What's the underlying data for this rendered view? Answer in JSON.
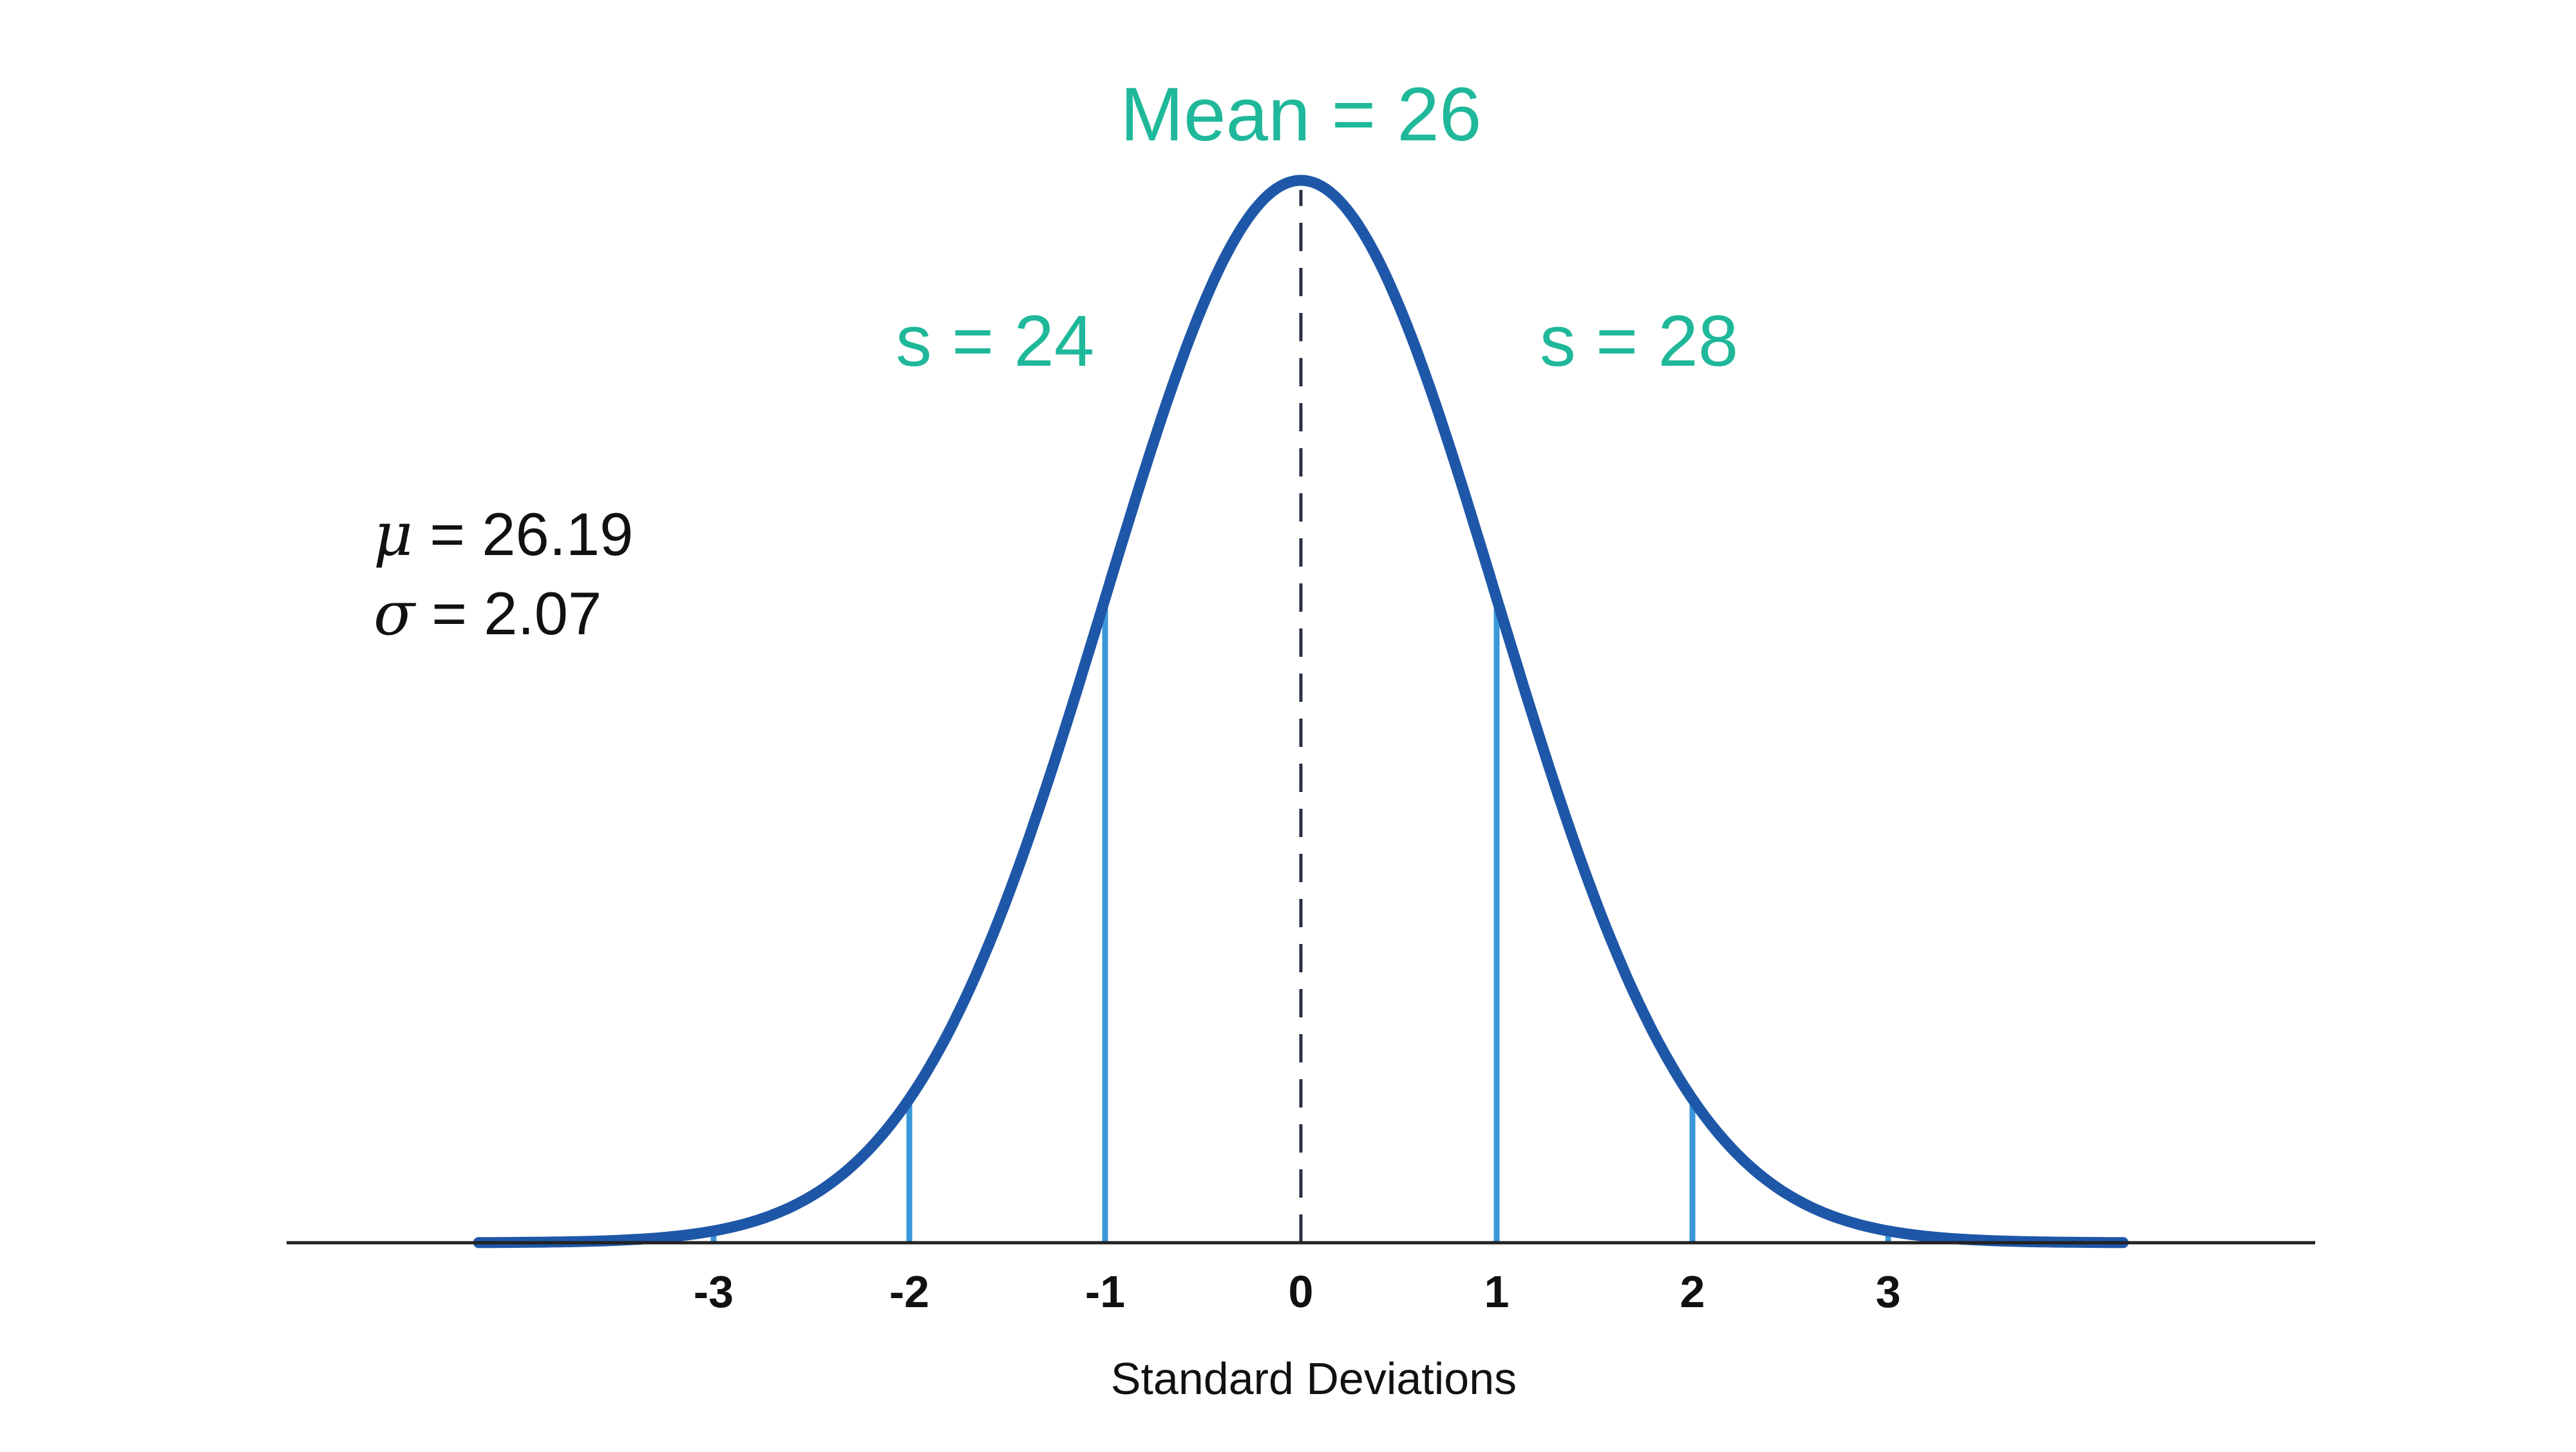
{
  "chart_data": {
    "type": "line",
    "xlabel": "Standard Deviations",
    "ylabel": "",
    "xlim": [
      -4.2,
      4.2
    ],
    "ylim": [
      0,
      0.42
    ],
    "ticks": [
      {
        "value": -3,
        "label": "-3"
      },
      {
        "value": -2,
        "label": "-2"
      },
      {
        "value": -1,
        "label": "-1"
      },
      {
        "value": 0,
        "label": "0"
      },
      {
        "value": 1,
        "label": "1"
      },
      {
        "value": 2,
        "label": "2"
      },
      {
        "value": 3,
        "label": "3"
      }
    ],
    "series": [
      {
        "curve": "standard-normal-density",
        "x_range": [
          -4.2,
          4.2
        ],
        "color": "#1f57a8"
      }
    ],
    "reference_lines": [
      {
        "x": -3,
        "color": "#3a97d9"
      },
      {
        "x": -2,
        "color": "#3a97d9"
      },
      {
        "x": -1,
        "color": "#3a97d9"
      },
      {
        "x": 1,
        "color": "#3a97d9"
      },
      {
        "x": 2,
        "color": "#3a97d9"
      },
      {
        "x": 3,
        "color": "#3a97d9"
      }
    ],
    "mean_line": {
      "x": 0,
      "style": "dashed",
      "color": "#2a2f45"
    },
    "annotations": {
      "mean_label": "Mean = 26",
      "left_label": "s = 24",
      "right_label": "s = 28",
      "mu_symbol": "μ",
      "mu_value": " = 26.19",
      "sigma_symbol": "σ",
      "sigma_value": " = 2.07"
    },
    "colors": {
      "curve": "#1f57a8",
      "sd_lines": "#3a97d9",
      "annotation_text": "#1fb89a",
      "axis": "#222222",
      "text": "#111111"
    }
  }
}
